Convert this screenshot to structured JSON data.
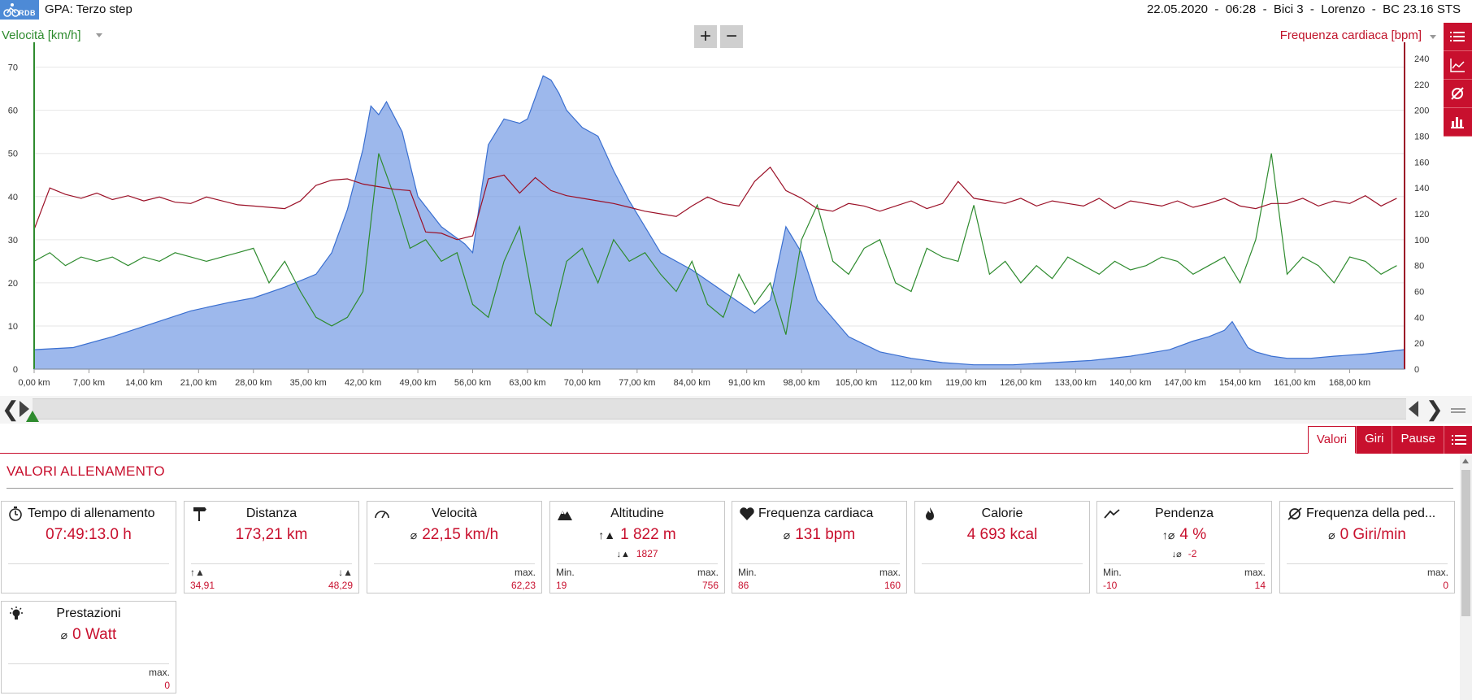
{
  "header": {
    "title": "GPA: Terzo step",
    "logo_text": "RDB",
    "session": "22.05.2020  -  06:28  -  Bici 3  -  Lorenzo  -  BC 23.16 STS"
  },
  "chart": {
    "left_axis_title": "Velocità [km/h]",
    "right_axis_title": "Frequenza cardiaca [bpm]",
    "zoom_in": "+",
    "zoom_out": "−"
  },
  "chart_data": {
    "type": "line",
    "xlabel": "",
    "ylabel": "Velocità [km/h]",
    "y2label": "Frequenza cardiaca [bpm]",
    "x_unit": "km",
    "xlim": [
      0,
      175
    ],
    "ylim": [
      0,
      72
    ],
    "y2lim": [
      0,
      240
    ],
    "x_ticks": [
      "0,00 km",
      "7,00 km",
      "14,00 km",
      "21,00 km",
      "28,00 km",
      "35,00 km",
      "42,00 km",
      "49,00 km",
      "56,00 km",
      "63,00 km",
      "70,00 km",
      "77,00 km",
      "84,00 km",
      "91,00 km",
      "98,00 km",
      "105,00 km",
      "112,00 km",
      "119,00 km",
      "126,00 km",
      "133,00 km",
      "140,00 km",
      "147,00 km",
      "154,00 km",
      "161,00 km",
      "168,00 km"
    ],
    "y_ticks": [
      0,
      10,
      20,
      30,
      40,
      50,
      60,
      70
    ],
    "y2_ticks": [
      0,
      20,
      40,
      60,
      80,
      100,
      120,
      140,
      160,
      180,
      200,
      220,
      240
    ],
    "grid": true,
    "colors": {
      "altitude": "#6f97e3",
      "speed": "#2e8b2e",
      "heart_rate": "#9b1027"
    },
    "series": [
      {
        "name": "",
        "role": "altitude-area",
        "color": "#6f97e3",
        "x": [
          0,
          5,
          10,
          15,
          20,
          25,
          28,
          32,
          36,
          38,
          40,
          42,
          43,
          44,
          45,
          47,
          49,
          52,
          55,
          56,
          57,
          58,
          60,
          62,
          63,
          64,
          65,
          66,
          67,
          68,
          70,
          72,
          74,
          76,
          78,
          80,
          84,
          88,
          92,
          94,
          96,
          98,
          100,
          104,
          108,
          112,
          116,
          120,
          125,
          130,
          135,
          140,
          145,
          148,
          150,
          152,
          153,
          154,
          155,
          156,
          158,
          160,
          163,
          166,
          170,
          175
        ],
        "values": [
          4.5,
          5,
          7.5,
          10.5,
          13.5,
          15.5,
          16.5,
          19,
          22,
          27,
          37,
          51,
          61,
          59,
          62,
          55,
          40,
          33,
          29,
          27,
          40,
          52,
          58,
          57,
          58,
          63,
          68,
          67,
          64,
          60,
          56,
          54,
          46,
          39,
          33,
          27,
          23,
          18,
          13,
          16,
          33,
          27,
          16,
          7.5,
          4,
          2.5,
          1.5,
          1,
          1,
          1.5,
          2,
          3,
          4.5,
          6.5,
          7.5,
          9,
          11,
          8,
          5,
          4,
          3,
          2.5,
          2.5,
          3,
          3.5,
          4.5
        ]
      },
      {
        "name": "Velocità [km/h]",
        "role": "speed",
        "color": "#2e8b2e",
        "x": [
          0,
          2,
          4,
          6,
          8,
          10,
          12,
          14,
          16,
          18,
          20,
          22,
          24,
          26,
          28,
          30,
          32,
          34,
          36,
          38,
          40,
          42,
          44,
          46,
          48,
          50,
          52,
          54,
          56,
          58,
          60,
          62,
          64,
          66,
          68,
          70,
          72,
          74,
          76,
          78,
          80,
          82,
          84,
          86,
          88,
          90,
          92,
          94,
          96,
          98,
          100,
          102,
          104,
          106,
          108,
          110,
          112,
          114,
          116,
          118,
          120,
          122,
          124,
          126,
          128,
          130,
          132,
          134,
          136,
          138,
          140,
          142,
          144,
          146,
          148,
          150,
          152,
          154,
          156,
          158,
          160,
          162,
          164,
          166,
          168,
          170,
          172,
          174
        ],
        "values": [
          25,
          27,
          24,
          26,
          25,
          26,
          24,
          26,
          25,
          27,
          26,
          25,
          26,
          27,
          28,
          20,
          25,
          18,
          12,
          10,
          12,
          18,
          50,
          40,
          28,
          30,
          25,
          27,
          15,
          12,
          25,
          33,
          13,
          10,
          25,
          28,
          20,
          30,
          25,
          27,
          22,
          18,
          25,
          15,
          12,
          22,
          15,
          20,
          8,
          30,
          38,
          25,
          22,
          28,
          30,
          20,
          18,
          28,
          26,
          25,
          38,
          22,
          25,
          20,
          24,
          21,
          26,
          24,
          22,
          25,
          23,
          24,
          26,
          25,
          22,
          24,
          26,
          20,
          30,
          50,
          22,
          26,
          24,
          20,
          26,
          25,
          22,
          24
        ]
      },
      {
        "name": "Frequenza cardiaca [bpm]",
        "role": "heart-rate",
        "color": "#9b1027",
        "x": [
          0,
          2,
          4,
          6,
          8,
          10,
          12,
          14,
          16,
          18,
          20,
          22,
          24,
          26,
          28,
          30,
          32,
          34,
          36,
          38,
          40,
          42,
          44,
          46,
          48,
          50,
          52,
          54,
          56,
          58,
          60,
          62,
          64,
          66,
          68,
          70,
          72,
          74,
          76,
          78,
          80,
          82,
          84,
          86,
          88,
          90,
          92,
          94,
          96,
          98,
          100,
          102,
          104,
          106,
          108,
          110,
          112,
          114,
          116,
          118,
          120,
          122,
          124,
          126,
          128,
          130,
          132,
          134,
          136,
          138,
          140,
          142,
          144,
          146,
          148,
          150,
          152,
          154,
          156,
          158,
          160,
          162,
          164,
          166,
          168,
          170,
          172,
          174
        ],
        "values": [
          108,
          140,
          135,
          132,
          136,
          131,
          134,
          130,
          133,
          129,
          128,
          133,
          130,
          127,
          126,
          125,
          124,
          130,
          142,
          146,
          147,
          143,
          141,
          139,
          138,
          106,
          105,
          100,
          103,
          147,
          150,
          136,
          148,
          138,
          134,
          132,
          130,
          128,
          125,
          122,
          120,
          118,
          126,
          133,
          128,
          126,
          145,
          156,
          138,
          132,
          124,
          122,
          128,
          126,
          122,
          126,
          130,
          124,
          128,
          145,
          132,
          130,
          128,
          132,
          126,
          130,
          128,
          126,
          132,
          124,
          130,
          128,
          126,
          130,
          125,
          128,
          132,
          126,
          124,
          128,
          128,
          132,
          126,
          130,
          128,
          134,
          126,
          132
        ]
      }
    ]
  },
  "navigator": {
    "left_arrow": "❮",
    "right_arrow": "❯"
  },
  "tabs": [
    {
      "label": "Valori",
      "active": true
    },
    {
      "label": "Giri",
      "active": false
    },
    {
      "label": "Pause",
      "active": false
    }
  ],
  "section_title": "VALORI ALLENAMENTO",
  "cards": [
    {
      "title": "Tempo di allenamento",
      "icon": "stopwatch-icon",
      "main": "07:49:13.0 h",
      "main_prefix": "",
      "sub": "",
      "sub_prefix": "",
      "left_label": "",
      "left_value": "",
      "right_label": "",
      "right_value": ""
    },
    {
      "title": "Distanza",
      "icon": "signpost-icon",
      "main": "173,21 km",
      "main_prefix": "",
      "sub": "",
      "sub_prefix": "",
      "left_label": "↑▲",
      "left_value": "34,91",
      "right_label": "↓▲",
      "right_value": "48,29"
    },
    {
      "title": "Velocità",
      "icon": "speedometer-icon",
      "main": "22,15 km/h",
      "main_prefix": "⌀",
      "sub": "",
      "sub_prefix": "",
      "left_label": "",
      "left_value": "",
      "right_label": "max.",
      "right_value": "62,23"
    },
    {
      "title": "Altitudine",
      "icon": "mountain-icon",
      "main": "1 822 m",
      "main_prefix": "↑▲",
      "sub": "1827",
      "sub_prefix": "↓▲",
      "left_label": "Min.",
      "left_value": "19",
      "right_label": "max.",
      "right_value": "756"
    },
    {
      "title": "Frequenza cardiaca",
      "icon": "heart-icon",
      "main": "131 bpm",
      "main_prefix": "⌀",
      "sub": "",
      "sub_prefix": "",
      "left_label": "Min.",
      "left_value": "86",
      "right_label": "max.",
      "right_value": "160"
    },
    {
      "title": "Calorie",
      "icon": "flame-icon",
      "main": "4 693 kcal",
      "main_prefix": "",
      "sub": "",
      "sub_prefix": "",
      "left_label": "",
      "left_value": "",
      "right_label": "",
      "right_value": ""
    },
    {
      "title": "Pendenza",
      "icon": "slope-icon",
      "main": "4 %",
      "main_prefix": "↑⌀",
      "sub": "-2",
      "sub_prefix": "↓⌀",
      "left_label": "Min.",
      "left_value": "-10",
      "right_label": "max.",
      "right_value": "14"
    },
    {
      "title": "Frequenza della ped...",
      "icon": "cadence-icon",
      "main": "0 Giri/min",
      "main_prefix": "⌀",
      "sub": "",
      "sub_prefix": "",
      "left_label": "",
      "left_value": "",
      "right_label": "max.",
      "right_value": "0"
    },
    {
      "title": "Prestazioni",
      "icon": "lightbulb-icon",
      "main": "0 Watt",
      "main_prefix": "⌀",
      "sub": "",
      "sub_prefix": "",
      "left_label": "",
      "left_value": "",
      "right_label": "max.",
      "right_value": "0"
    }
  ]
}
